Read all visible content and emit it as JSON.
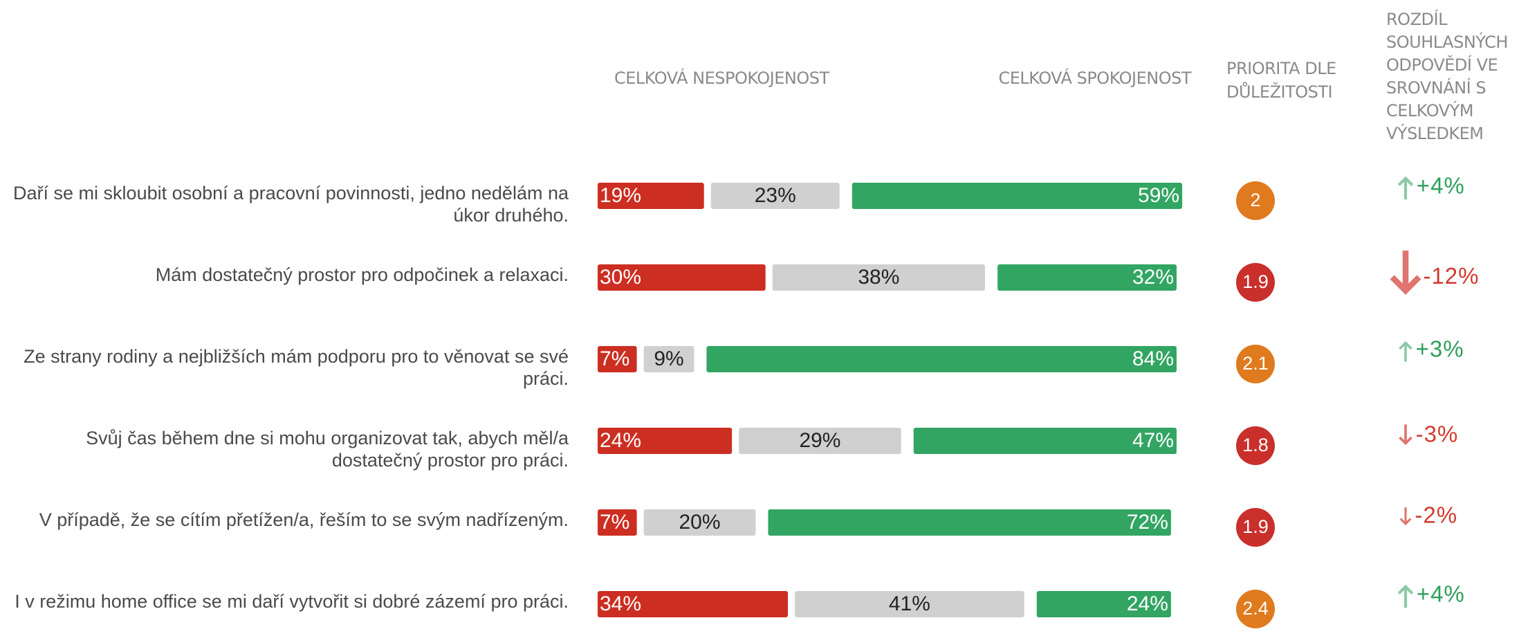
{
  "chart_data": {
    "type": "bar",
    "orientation": "horizontal",
    "stacked": true,
    "categories": [
      "Daří se mi skloubit osobní a pracovní povinnosti, jedno nedělám na úkor druhého.",
      "Mám dostatečný prostor pro odpočinek a relaxaci.",
      "Ze strany rodiny a nejbližších mám podporu pro to věnovat se své práci.",
      "Svůj čas během dne si mohu organizovat tak, abych měl/a dostatečný prostor pro práci.",
      "V případě, že se cítím přetížen/a, řeším to se svým nadřízeným.",
      "I v režimu home office se mi daří vytvořit si dobré zázemí pro práci."
    ],
    "series": [
      {
        "name": "CELKOVÁ NESPOKOJENOST",
        "color": "#cc2e22",
        "values": [
          19,
          30,
          7,
          24,
          7,
          34
        ],
        "value_labels": [
          "19%",
          "30%",
          "7%",
          "24%",
          "7%",
          "34%"
        ]
      },
      {
        "color": "#d0d0d0",
        "values": [
          23,
          38,
          9,
          29,
          20,
          41
        ],
        "value_labels": [
          "23%",
          "38%",
          "9%",
          "29%",
          "20%",
          "41%"
        ]
      },
      {
        "name": "CELKOVÁ SPOKOJENOST",
        "color": "#32a563",
        "values": [
          59,
          32,
          84,
          47,
          72,
          24
        ],
        "value_labels": [
          "59%",
          "32%",
          "84%",
          "47%",
          "72%",
          "24%"
        ]
      }
    ],
    "priority": {
      "title": "PRIORITA DLE DŮLEŽITOSTI",
      "values": [
        2,
        1.9,
        2.1,
        1.8,
        1.9,
        2.4
      ],
      "colors": [
        "#e07a1f",
        "#c9302c",
        "#e07a1f",
        "#c9302c",
        "#c9302c",
        "#e07a1f"
      ]
    },
    "difference": {
      "title": "ROZDÍL SOUHLASNÝCH ODPOVĚDÍ VE SROVNÁNÍ S CELKOVÝM VÝSLEDKEM",
      "values": [
        4,
        -12,
        3,
        -3,
        -2,
        4
      ],
      "value_labels": [
        "+4%",
        "-12%",
        "+3%",
        "-3%",
        "-2%",
        "+4%"
      ],
      "colors": [
        "#2f9e5c",
        "#d23a30",
        "#2f9e5c",
        "#d23a30",
        "#d23a30",
        "#2f9e5c"
      ]
    }
  }
}
